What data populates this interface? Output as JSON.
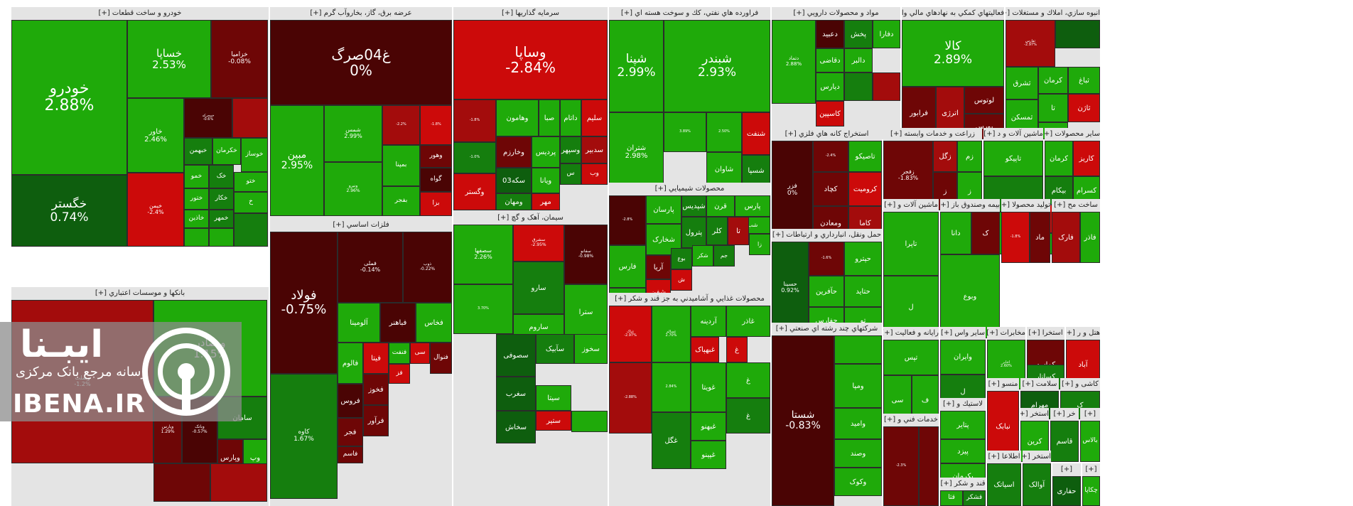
{
  "colors": {
    "g1": "#2fc41a",
    "g2": "#1faa0a",
    "g3": "#157e0e",
    "g4": "#0e5e0e",
    "r1": "#cc0a0a",
    "r2": "#a30c0c",
    "r3": "#6e0606",
    "r4": "#4a0404"
  },
  "logo": {
    "title": "ایبـنا",
    "subtitle": "رسانه مرجع بانک مرکزی",
    "latin": "IBENA.IR"
  },
  "sectors": [
    {
      "title": "خودرو و ساخت قطعات [+]",
      "tiles": [
        {
          "name": "خودرو",
          "value": "2.88%"
        },
        {
          "name": "خساپا",
          "value": "2.53%"
        },
        {
          "name": "خزامیا",
          "value": "-0.08%"
        },
        {
          "name": "خگستر",
          "value": "0.74%"
        },
        {
          "name": "خاور",
          "value": "2.46%"
        },
        {
          "name": "خمحرکه",
          "value": "-0.6%"
        },
        {
          "name": "",
          "value": ""
        },
        {
          "name": "خبهمن",
          "value": ""
        },
        {
          "name": "خکرمان",
          "value": ""
        },
        {
          "name": "خوساز",
          "value": ""
        },
        {
          "name": "خیمن",
          "value": "-2.4%"
        },
        {
          "name": "خمو",
          "value": ""
        },
        {
          "name": "خک",
          "value": ""
        },
        {
          "name": "ختو",
          "value": ""
        },
        {
          "name": "ختور",
          "value": ""
        },
        {
          "name": "خکار",
          "value": ""
        },
        {
          "name": "خ",
          "value": ""
        },
        {
          "name": "خمهر",
          "value": ""
        },
        {
          "name": "خاذین",
          "value": ""
        },
        {
          "name": "",
          "value": ""
        },
        {
          "name": "",
          "value": ""
        },
        {
          "name": "",
          "value": ""
        }
      ]
    },
    {
      "title": "عرضه برق، گاز، بخاروآب گرم [+]",
      "tiles": [
        {
          "name": "غ04صرگ",
          "value": "0%"
        },
        {
          "name": "مبین",
          "value": "2.95%"
        },
        {
          "name": "شمس",
          "value": "2.99%"
        },
        {
          "name": "ونیرو",
          "value": "2.96%"
        },
        {
          "name": "",
          "value": "-2.2%"
        },
        {
          "name": "",
          "value": "-1.8%"
        },
        {
          "name": "بمپنا",
          "value": ""
        },
        {
          "name": "وهور",
          "value": ""
        },
        {
          "name": "بفجر",
          "value": ""
        },
        {
          "name": "گواه",
          "value": ""
        },
        {
          "name": "بزا",
          "value": ""
        }
      ]
    },
    {
      "title": "سرمایه گذاریها [+]",
      "tiles": [
        {
          "name": "وساپا",
          "value": "-2.84%"
        },
        {
          "name": "",
          "value": "-1.8%"
        },
        {
          "name": "وهامون",
          "value": ""
        },
        {
          "name": "صبا",
          "value": ""
        },
        {
          "name": "داتام",
          "value": ""
        },
        {
          "name": "سلیم",
          "value": ""
        },
        {
          "name": "",
          "value": "-1.0%"
        },
        {
          "name": "وخارزم",
          "value": ""
        },
        {
          "name": "پردیس",
          "value": ""
        },
        {
          "name": "وسپهر",
          "value": ""
        },
        {
          "name": "سدبیر",
          "value": ""
        },
        {
          "name": "وگستر",
          "value": ""
        },
        {
          "name": "03سکه",
          "value": ""
        },
        {
          "name": "ویانا",
          "value": ""
        },
        {
          "name": "س",
          "value": ""
        },
        {
          "name": "وب",
          "value": ""
        },
        {
          "name": "ومهان",
          "value": ""
        },
        {
          "name": "مهر",
          "value": ""
        }
      ]
    },
    {
      "title": "سیمان، آهک و گچ [+]",
      "tiles": [
        {
          "name": "سصفها",
          "value": "2.26%"
        },
        {
          "name": "سشرق",
          "value": "-2.95%"
        },
        {
          "name": "سفانو",
          "value": "-0.98%"
        },
        {
          "name": "سارو",
          "value": ""
        },
        {
          "name": "ساروم",
          "value": ""
        },
        {
          "name": "سترا",
          "value": ""
        },
        {
          "name": "",
          "value": "3.70%"
        },
        {
          "name": "سصوفی",
          "value": ""
        },
        {
          "name": "سآبیک",
          "value": ""
        },
        {
          "name": "سخوز",
          "value": ""
        },
        {
          "name": "سغرب",
          "value": ""
        },
        {
          "name": "سخاش",
          "value": ""
        },
        {
          "name": "سیتا",
          "value": ""
        },
        {
          "name": "ستیر",
          "value": ""
        },
        {
          "name": "",
          "value": ""
        }
      ]
    },
    {
      "title": "فراورده هاي نفتي، كك و سوخت هسته اي [+]",
      "tiles": [
        {
          "name": "شپنا",
          "value": "2.99%"
        },
        {
          "name": "شبندر",
          "value": "2.93%"
        },
        {
          "name": "شتران",
          "value": "2.98%"
        },
        {
          "name": "",
          "value": "3.89%"
        },
        {
          "name": "",
          "value": "2.50%"
        },
        {
          "name": "شنفت",
          "value": ""
        },
        {
          "name": "شاوان",
          "value": ""
        },
        {
          "name": "شسپا",
          "value": ""
        },
        {
          "name": "شراز",
          "value": ""
        }
      ]
    },
    {
      "title": "محصولات شيميايي [+]",
      "tiles": [
        {
          "name": "",
          "value": "-2.8%"
        },
        {
          "name": "پارسان",
          "value": ""
        },
        {
          "name": "شپدیس",
          "value": ""
        },
        {
          "name": "قرن",
          "value": ""
        },
        {
          "name": "پارس",
          "value": ""
        },
        {
          "name": "شب",
          "value": ""
        },
        {
          "name": "شخارک",
          "value": ""
        },
        {
          "name": "پترول",
          "value": ""
        },
        {
          "name": "کلر",
          "value": ""
        },
        {
          "name": "تا",
          "value": ""
        },
        {
          "name": "زا",
          "value": ""
        },
        {
          "name": "فارس",
          "value": ""
        },
        {
          "name": "آریا",
          "value": ""
        },
        {
          "name": "بوع",
          "value": ""
        },
        {
          "name": "شکر",
          "value": ""
        },
        {
          "name": "جم",
          "value": ""
        },
        {
          "name": "پاکشو",
          "value": ""
        },
        {
          "name": "شفن",
          "value": ""
        },
        {
          "name": "ش",
          "value": ""
        }
      ]
    },
    {
      "title": "محصولات غذايي و آشاميدني به جز قند و شكر [+]",
      "tiles": [
        {
          "name": "غپاک",
          "value": "-2.97%"
        },
        {
          "name": "غسالم",
          "value": "2.70%"
        },
        {
          "name": "آردینه",
          "value": ""
        },
        {
          "name": "غاذر",
          "value": ""
        },
        {
          "name": "",
          "value": "2.84%"
        },
        {
          "name": "غبهپاک",
          "value": ""
        },
        {
          "name": "غویتا",
          "value": ""
        },
        {
          "name": "غ",
          "value": ""
        },
        {
          "name": "غگل",
          "value": ""
        },
        {
          "name": "غبهنو",
          "value": ""
        },
        {
          "name": "غپینو",
          "value": ""
        },
        {
          "name": "",
          "value": "-2.88%"
        },
        {
          "name": "غ",
          "value": ""
        },
        {
          "name": "غ",
          "value": ""
        }
      ]
    },
    {
      "title": "فلزات اساسي [+]",
      "tiles": [
        {
          "name": "فولاد",
          "value": "-0.75%"
        },
        {
          "name": "فملی",
          "value": "-0.14%"
        },
        {
          "name": "ذوب",
          "value": "-0.22%"
        },
        {
          "name": "کاوه",
          "value": "1.67%"
        },
        {
          "name": "آلومینا",
          "value": ""
        },
        {
          "name": "فباهنر",
          "value": ""
        },
        {
          "name": "فخاس",
          "value": ""
        },
        {
          "name": "فالوم",
          "value": ""
        },
        {
          "name": "فیتا",
          "value": ""
        },
        {
          "name": "فنفت",
          "value": ""
        },
        {
          "name": "سی",
          "value": ""
        },
        {
          "name": "فنوال",
          "value": ""
        },
        {
          "name": "فروس",
          "value": ""
        },
        {
          "name": "فخوز",
          "value": ""
        },
        {
          "name": "فرآور",
          "value": ""
        },
        {
          "name": "فجر",
          "value": ""
        },
        {
          "name": "فاسم",
          "value": ""
        },
        {
          "name": "فز",
          "value": ""
        }
      ]
    },
    {
      "title": "بانكها و موسسات اعتباري [+]",
      "tiles": [
        {
          "name": "وبملت",
          "value": "-1.2%"
        },
        {
          "name": "وبصادر",
          "value": "1.15%"
        },
        {
          "name": "وپارس",
          "value": "1.29%"
        },
        {
          "name": "وبانک",
          "value": "-0.57%"
        },
        {
          "name": "سامان",
          "value": ""
        },
        {
          "name": "وپارس",
          "value": ""
        },
        {
          "name": "وپ",
          "value": ""
        },
        {
          "name": "",
          "value": ""
        },
        {
          "name": "",
          "value": ""
        }
      ]
    },
    {
      "title": "مواد و محصولات دارويي [+]",
      "tiles": [
        {
          "name": "دتماد",
          "value": "2.88%"
        },
        {
          "name": "دعبید",
          "value": ""
        },
        {
          "name": "پخش",
          "value": ""
        },
        {
          "name": "دفارا",
          "value": ""
        },
        {
          "name": "دقاضی",
          "value": ""
        },
        {
          "name": "دالبر",
          "value": ""
        },
        {
          "name": "دیارس",
          "value": ""
        },
        {
          "name": "کاسپین",
          "value": ""
        },
        {
          "name": "",
          "value": ""
        },
        {
          "name": "",
          "value": ""
        }
      ]
    },
    {
      "title": "فعاليتهاي كمكي به نهادهاي مالي وا [+]",
      "tiles": [
        {
          "name": "کالا",
          "value": "2.89%"
        },
        {
          "name": "فرابور",
          "value": ""
        },
        {
          "name": "اترژی",
          "value": ""
        },
        {
          "name": "لوتوس",
          "value": ""
        },
        {
          "name": "بورس",
          "value": ""
        }
      ]
    },
    {
      "title": "انبوه سازي، املاك و مستغلات [+]",
      "tiles": [
        {
          "name": "ثفارس",
          "value": "-2.97%"
        },
        {
          "name": "",
          "value": ""
        },
        {
          "name": "ثشرق",
          "value": ""
        },
        {
          "name": "کرمان",
          "value": ""
        },
        {
          "name": "ثباغ",
          "value": ""
        },
        {
          "name": "ثمسکن",
          "value": ""
        },
        {
          "name": "تا",
          "value": ""
        },
        {
          "name": "ثاژن",
          "value": ""
        },
        {
          "name": "تر",
          "value": ""
        }
      ]
    },
    {
      "title": "استخراج كانه هاي فلزي [+]",
      "tiles": [
        {
          "name": "فزر",
          "value": "0%"
        },
        {
          "name": "",
          "value": "-2.4%"
        },
        {
          "name": "تاصیکو",
          "value": ""
        },
        {
          "name": "کچاد",
          "value": ""
        },
        {
          "name": "کرومیت",
          "value": ""
        },
        {
          "name": "کاما",
          "value": ""
        },
        {
          "name": "ومعادن",
          "value": ""
        }
      ]
    },
    {
      "title": "حمل ونقل، انبارداري و ارتباطات [+]",
      "tiles": [
        {
          "name": "حسینا",
          "value": "0.92%"
        },
        {
          "name": "",
          "value": "-1.6%"
        },
        {
          "name": "حپترو",
          "value": ""
        },
        {
          "name": "حآفرین",
          "value": ""
        },
        {
          "name": "حتاید",
          "value": ""
        },
        {
          "name": "حفارس",
          "value": ""
        },
        {
          "name": "تو",
          "value": ""
        }
      ]
    },
    {
      "title": "شركتهاي چند رشته اي صنعتي [+]",
      "tiles": [
        {
          "name": "شستا",
          "value": "-0.83%"
        },
        {
          "name": "",
          "value": ""
        },
        {
          "name": "ومپا",
          "value": ""
        },
        {
          "name": "وامید",
          "value": ""
        },
        {
          "name": "وصند",
          "value": ""
        },
        {
          "name": "وکوک",
          "value": ""
        }
      ]
    },
    {
      "title": "زراعت و خدمات وابسته [+]",
      "tiles": [
        {
          "name": "زفجر",
          "value": "-1.83%"
        },
        {
          "name": "زگل",
          "value": ""
        },
        {
          "name": "زم",
          "value": ""
        },
        {
          "name": "ز",
          "value": ""
        },
        {
          "name": "ز",
          "value": ""
        }
      ]
    },
    {
      "title": "ماشين آلات و د [+]",
      "tiles": [
        {
          "name": "تاپیکو",
          "value": ""
        },
        {
          "name": "",
          "value": ""
        },
        {
          "name": "بترانس",
          "value": ""
        }
      ]
    },
    {
      "title": "ساير محصولات [+]",
      "tiles": [
        {
          "name": "کرمان",
          "value": ""
        },
        {
          "name": "کاریز",
          "value": ""
        },
        {
          "name": "بیکام",
          "value": ""
        },
        {
          "name": "کسرام",
          "value": ""
        },
        {
          "name": "بیوپا",
          "value": ""
        },
        {
          "name": "ک",
          "value": ""
        },
        {
          "name": "کفرا",
          "value": ""
        }
      ]
    },
    {
      "title": "ماشين آلات و [+]",
      "tiles": [
        {
          "name": "تاپرا",
          "value": ""
        },
        {
          "name": "ل",
          "value": ""
        }
      ]
    },
    {
      "title": "بیمه وصندوق باز [+]",
      "tiles": [
        {
          "name": "دانا",
          "value": ""
        },
        {
          "name": "ک",
          "value": ""
        },
        {
          "name": "وبوع",
          "value": ""
        }
      ]
    },
    {
      "title": "توليد محصولا [+]",
      "tiles": [
        {
          "name": "",
          "value": "-1.8%"
        },
        {
          "name": "ماد",
          "value": ""
        }
      ]
    },
    {
      "title": "ساخت مح [+]",
      "tiles": [
        {
          "name": "فارک",
          "value": ""
        },
        {
          "name": "فاذر",
          "value": ""
        }
      ]
    },
    {
      "title": "رايانه و فعاليت [+]",
      "tiles": [
        {
          "name": "تپس",
          "value": ""
        },
        {
          "name": "سی",
          "value": ""
        },
        {
          "name": "ف",
          "value": ""
        }
      ]
    },
    {
      "title": "ساير واس [+]",
      "tiles": [
        {
          "name": "وایران",
          "value": ""
        },
        {
          "name": "ل",
          "value": ""
        }
      ]
    },
    {
      "title": "مخابرات [+]",
      "tiles": [
        {
          "name": "اخابر",
          "value": "2.60%"
        }
      ]
    },
    {
      "title": "استخرا [+]",
      "tiles": [
        {
          "name": "کماسه",
          "value": ""
        },
        {
          "name": "کسانار",
          "value": ""
        }
      ]
    },
    {
      "title": "هتل و ر [+]",
      "tiles": [
        {
          "name": "آباد",
          "value": ""
        }
      ]
    },
    {
      "title": "خدمات فني و [+]",
      "tiles": [
        {
          "name": "",
          "value": "-2.3%"
        },
        {
          "name": "",
          "value": ""
        }
      ]
    },
    {
      "title": "لاستيك و [+]",
      "tiles": [
        {
          "name": "پتایر",
          "value": ""
        },
        {
          "name": "پیزد",
          "value": ""
        },
        {
          "name": "پکرمان",
          "value": ""
        }
      ]
    },
    {
      "title": "منسو [+]",
      "tiles": [
        {
          "name": "نبابک",
          "value": ""
        }
      ]
    },
    {
      "title": "سلامت [+]",
      "tiles": [
        {
          "name": "مهرام",
          "value": ""
        }
      ]
    },
    {
      "title": "کاشی و [+]",
      "tiles": [
        {
          "name": "ک",
          "value": ""
        }
      ]
    },
    {
      "title": "قند و شكر [+]",
      "tiles": [
        {
          "name": "قثا",
          "value": ""
        },
        {
          "name": "قشکر",
          "value": ""
        }
      ]
    },
    {
      "title": "استخر [+]",
      "tiles": [
        {
          "name": "کرین",
          "value": ""
        }
      ]
    },
    {
      "title": "خر [+]",
      "tiles": [
        {
          "name": "قاسم",
          "value": ""
        }
      ]
    },
    {
      "title": "اطلاعا [+]",
      "tiles": [
        {
          "name": "اسیاتک",
          "value": ""
        }
      ]
    },
    {
      "title": "[+]",
      "tiles": [
        {
          "name": "بالاس",
          "value": ""
        }
      ]
    },
    {
      "title": "استخر [+]",
      "tiles": [
        {
          "name": "آوالک",
          "value": ""
        }
      ]
    },
    {
      "title": "[+]",
      "tiles": [
        {
          "name": "حفاری",
          "value": ""
        }
      ]
    },
    {
      "title": "[+]",
      "tiles": [
        {
          "name": "چکاپا",
          "value": ""
        }
      ]
    }
  ]
}
